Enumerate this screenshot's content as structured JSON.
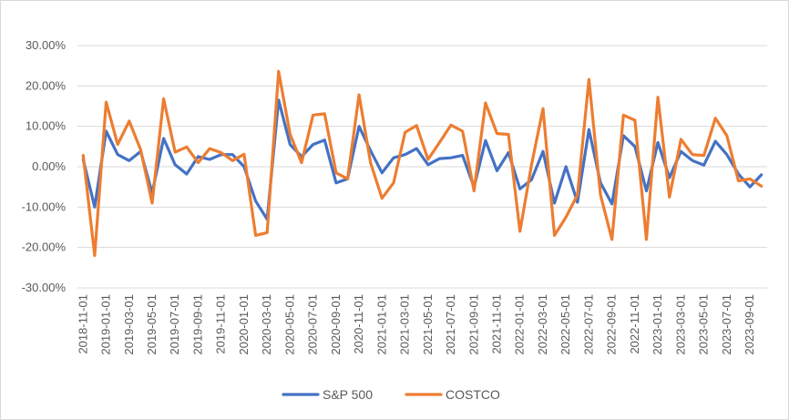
{
  "chart_data": {
    "type": "line",
    "title": "",
    "xlabel": "",
    "ylabel": "",
    "ylim": [
      -0.3,
      0.3
    ],
    "y_ticks": [
      "30.00%",
      "20.00%",
      "10.00%",
      "0.00%",
      "-10.00%",
      "-20.00%",
      "-30.00%"
    ],
    "grid": "horizontal",
    "legend_position": "bottom",
    "x": [
      "2018-11-01",
      "2018-12-01",
      "2019-01-01",
      "2019-02-01",
      "2019-03-01",
      "2019-04-01",
      "2019-05-01",
      "2019-06-01",
      "2019-07-01",
      "2019-08-01",
      "2019-09-01",
      "2019-10-01",
      "2019-11-01",
      "2019-12-01",
      "2020-01-01",
      "2020-02-01",
      "2020-03-01",
      "2020-04-01",
      "2020-05-01",
      "2020-06-01",
      "2020-07-01",
      "2020-08-01",
      "2020-09-01",
      "2020-10-01",
      "2020-11-01",
      "2020-12-01",
      "2021-01-01",
      "2021-02-01",
      "2021-03-01",
      "2021-04-01",
      "2021-05-01",
      "2021-06-01",
      "2021-07-01",
      "2021-08-01",
      "2021-09-01",
      "2021-10-01",
      "2021-11-01",
      "2021-12-01",
      "2022-01-01",
      "2022-02-01",
      "2022-03-01",
      "2022-04-01",
      "2022-05-01",
      "2022-06-01",
      "2022-07-01",
      "2022-08-01",
      "2022-09-01",
      "2022-10-01",
      "2022-11-01",
      "2022-12-01",
      "2023-01-01",
      "2023-02-01",
      "2023-03-01",
      "2023-04-01",
      "2023-05-01",
      "2023-06-01",
      "2023-07-01",
      "2023-08-01",
      "2023-09-01",
      "2023-10-01"
    ],
    "x_labels": [
      "2018-11-01",
      "2019-01-01",
      "2019-03-01",
      "2019-05-01",
      "2019-07-01",
      "2019-09-01",
      "2019-11-01",
      "2020-01-01",
      "2020-03-01",
      "2020-05-01",
      "2020-07-01",
      "2020-09-01",
      "2020-11-01",
      "2021-01-01",
      "2021-03-01",
      "2021-05-01",
      "2021-07-01",
      "2021-09-01",
      "2021-11-01",
      "2022-01-01",
      "2022-03-01",
      "2022-05-01",
      "2022-07-01",
      "2022-09-01",
      "2022-11-01",
      "2023-01-01",
      "2023-03-01",
      "2023-05-01",
      "2023-07-01",
      "2023-09-01"
    ],
    "series": [
      {
        "name": "S&P 500",
        "color": "#4472C4",
        "values": [
          0.018,
          -0.1,
          0.088,
          0.03,
          0.015,
          0.038,
          -0.065,
          0.07,
          0.005,
          -0.018,
          0.025,
          0.018,
          0.03,
          0.03,
          0.0,
          -0.085,
          -0.13,
          0.165,
          0.055,
          0.025,
          0.055,
          0.066,
          -0.04,
          -0.03,
          0.1,
          0.04,
          -0.015,
          0.022,
          0.03,
          0.045,
          0.005,
          0.02,
          0.022,
          0.028,
          -0.05,
          0.065,
          -0.01,
          0.035,
          -0.055,
          -0.032,
          0.038,
          -0.09,
          0.0,
          -0.088,
          0.092,
          -0.04,
          -0.092,
          0.077,
          0.05,
          -0.06,
          0.06,
          -0.027,
          0.038,
          0.015,
          0.004,
          0.063,
          0.03,
          -0.018,
          -0.05,
          -0.02
        ]
      },
      {
        "name": "COSTCO",
        "color": "#ED7D31",
        "values": [
          0.028,
          -0.22,
          0.16,
          0.055,
          0.113,
          0.042,
          -0.09,
          0.168,
          0.036,
          0.049,
          0.01,
          0.045,
          0.035,
          0.015,
          0.031,
          -0.17,
          -0.163,
          0.236,
          0.08,
          0.01,
          0.128,
          0.131,
          -0.015,
          -0.03,
          0.178,
          0.01,
          -0.078,
          -0.04,
          0.085,
          0.102,
          0.018,
          0.06,
          0.103,
          0.088,
          -0.06,
          0.158,
          0.082,
          0.08,
          -0.16,
          0.005,
          0.144,
          -0.17,
          -0.125,
          -0.07,
          0.216,
          -0.07,
          -0.18,
          0.128,
          0.115,
          -0.18,
          0.172,
          -0.075,
          0.068,
          0.03,
          0.028,
          0.12,
          0.077,
          -0.035,
          -0.03,
          -0.048
        ]
      }
    ]
  }
}
